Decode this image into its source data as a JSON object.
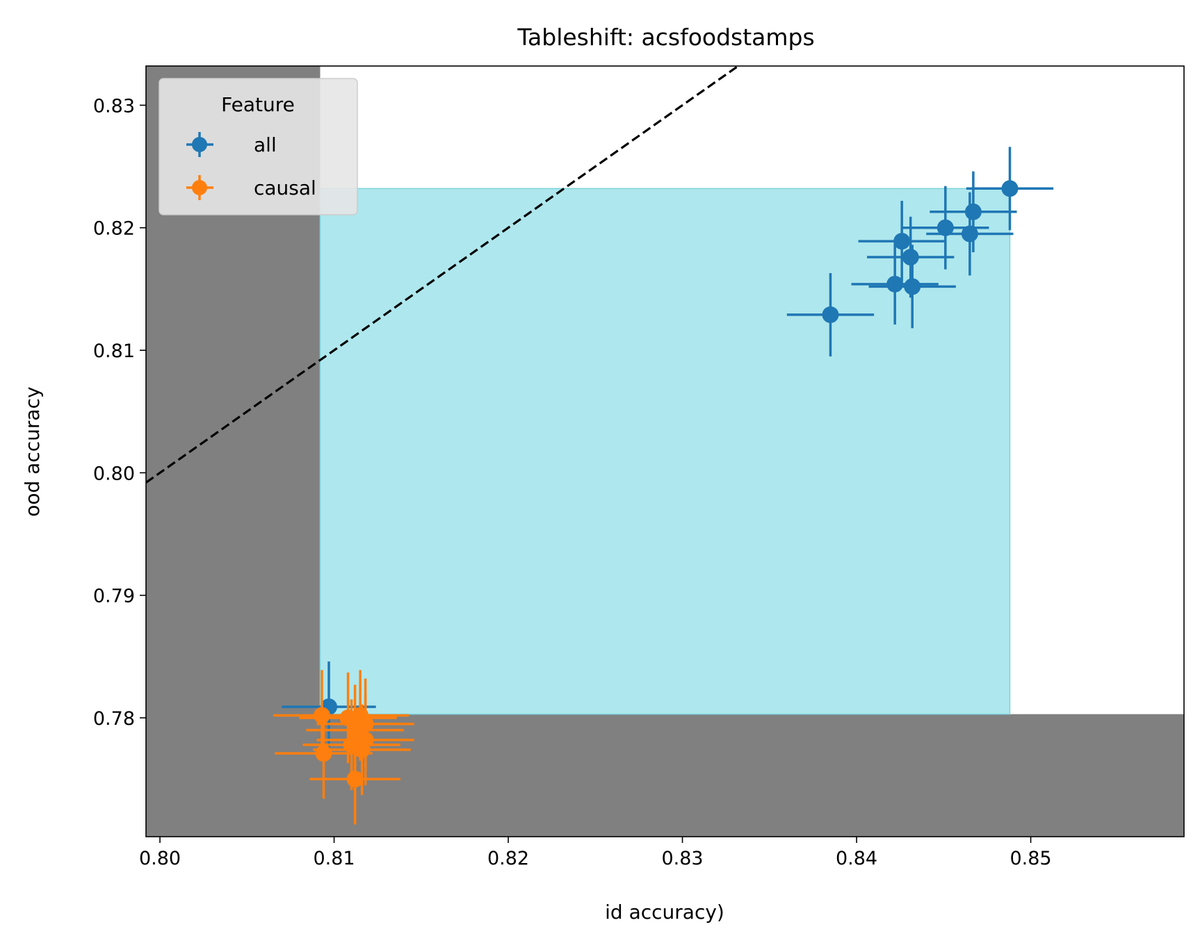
{
  "chart_data": {
    "type": "scatter",
    "title": "Tableshift: acsfoodstamps",
    "xlabel": "id accuracy)",
    "ylabel": "ood accuracy",
    "xlim": [
      0.7992,
      0.8588
    ],
    "ylim": [
      0.7703,
      0.8332
    ],
    "xticks": [
      0.8,
      0.81,
      0.82,
      0.83,
      0.84,
      0.85
    ],
    "yticks": [
      0.78,
      0.79,
      0.8,
      0.81,
      0.82,
      0.83
    ],
    "xtick_labels": [
      "0.80",
      "0.81",
      "0.82",
      "0.83",
      "0.84",
      "0.85"
    ],
    "ytick_labels": [
      "0.78",
      "0.79",
      "0.80",
      "0.81",
      "0.82",
      "0.83"
    ],
    "grid": false,
    "legend": {
      "title": "Feature",
      "position": "top-left",
      "entries": [
        "all",
        "causal"
      ]
    },
    "reference_line": {
      "style": "dashed",
      "color": "#000000",
      "slope": 1,
      "intercept": 0
    },
    "shaded_regions": [
      {
        "label": "",
        "color": "#808080",
        "x": [
          0.7992,
          0.8092
        ],
        "y": [
          0.7703,
          0.8332
        ]
      },
      {
        "label": "",
        "color": "#808080",
        "x": [
          0.8092,
          0.8588
        ],
        "y": [
          0.7703,
          0.7803
        ]
      },
      {
        "label": "",
        "color": "#aee7ed",
        "x": [
          0.8092,
          0.8488
        ],
        "y": [
          0.7803,
          0.8232
        ]
      }
    ],
    "series": [
      {
        "name": "all",
        "color": "#1f77b4",
        "points": [
          {
            "x": 0.8488,
            "y": 0.8232,
            "xerr": 0.0025,
            "yerr": 0.0034
          },
          {
            "x": 0.8467,
            "y": 0.8213,
            "xerr": 0.0025,
            "yerr": 0.0033
          },
          {
            "x": 0.8451,
            "y": 0.82,
            "xerr": 0.0025,
            "yerr": 0.0034
          },
          {
            "x": 0.8465,
            "y": 0.8195,
            "xerr": 0.0025,
            "yerr": 0.0034
          },
          {
            "x": 0.8426,
            "y": 0.8189,
            "xerr": 0.0025,
            "yerr": 0.0033
          },
          {
            "x": 0.8431,
            "y": 0.8176,
            "xerr": 0.0025,
            "yerr": 0.0033
          },
          {
            "x": 0.8422,
            "y": 0.8154,
            "xerr": 0.0025,
            "yerr": 0.0033
          },
          {
            "x": 0.8432,
            "y": 0.8152,
            "xerr": 0.0025,
            "yerr": 0.0034
          },
          {
            "x": 0.8385,
            "y": 0.8129,
            "xerr": 0.0025,
            "yerr": 0.0034
          },
          {
            "x": 0.8097,
            "y": 0.7809,
            "xerr": 0.0027,
            "yerr": 0.0037
          }
        ]
      },
      {
        "name": "causal",
        "color": "#ff7f0e",
        "points": [
          {
            "x": 0.8093,
            "y": 0.7802,
            "xerr": 0.0028,
            "yerr": 0.0037
          },
          {
            "x": 0.8108,
            "y": 0.78,
            "xerr": 0.0028,
            "yerr": 0.0037
          },
          {
            "x": 0.8115,
            "y": 0.7802,
            "xerr": 0.0028,
            "yerr": 0.0037
          },
          {
            "x": 0.8118,
            "y": 0.7795,
            "xerr": 0.0028,
            "yerr": 0.0037
          },
          {
            "x": 0.8112,
            "y": 0.779,
            "xerr": 0.0028,
            "yerr": 0.0037
          },
          {
            "x": 0.8118,
            "y": 0.7782,
            "xerr": 0.0028,
            "yerr": 0.0037
          },
          {
            "x": 0.811,
            "y": 0.7778,
            "xerr": 0.0028,
            "yerr": 0.0037
          },
          {
            "x": 0.8116,
            "y": 0.7774,
            "xerr": 0.0028,
            "yerr": 0.0037
          },
          {
            "x": 0.8094,
            "y": 0.7771,
            "xerr": 0.0028,
            "yerr": 0.0037
          },
          {
            "x": 0.8112,
            "y": 0.775,
            "xerr": 0.0026,
            "yerr": 0.0037
          }
        ]
      }
    ]
  }
}
